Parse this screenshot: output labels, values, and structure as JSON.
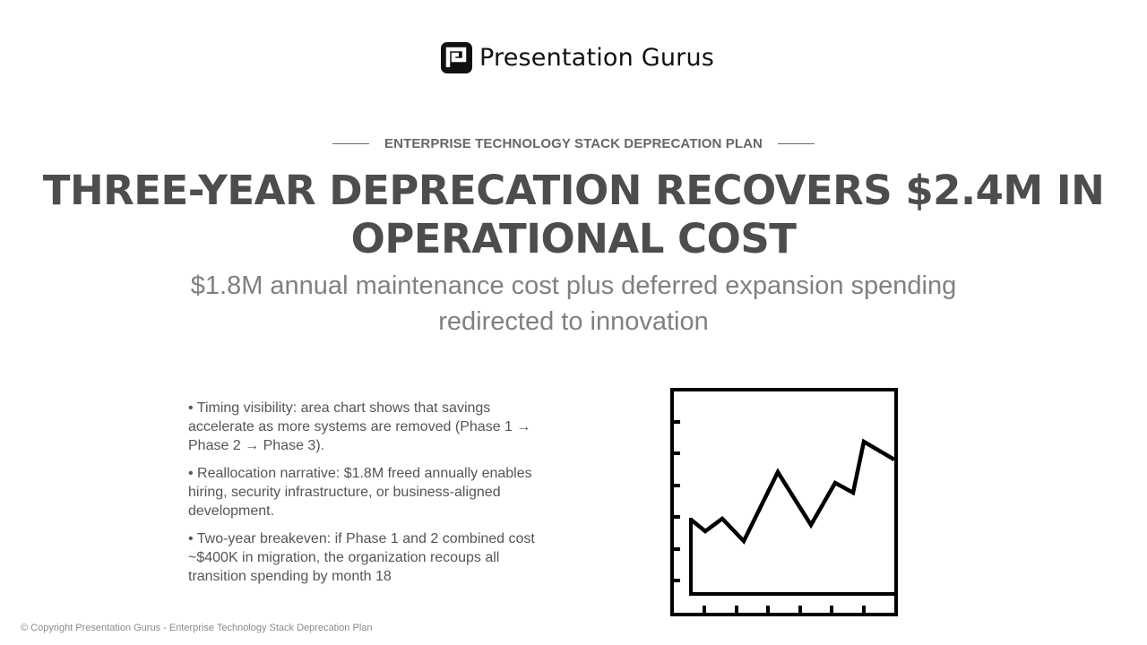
{
  "brand": {
    "name": "Presentation Gurus",
    "logo_icon": "presentation-gurus-logo-icon"
  },
  "header": {
    "eyebrow": "ENTERPRISE TECHNOLOGY STACK DEPRECATION PLAN",
    "title": "THREE-YEAR DEPRECATION RECOVERS $2.4M IN OPERATIONAL COST",
    "subtitle": "$1.8M annual maintenance cost plus deferred expansion spending redirected to innovation"
  },
  "bullets": [
    "• Timing visibility: area chart shows that savings accelerate as more systems are removed (Phase 1 → Phase 2 → Phase 3).",
    "• Reallocation narrative: $1.8M freed annually enables hiring, security infrastructure, or business-aligned development.",
    "• Two-year breakeven: if Phase 1 and 2 combined cost ~$400K in migration, the organization recoups all transition spending by month 18"
  ],
  "illustration": {
    "icon": "line-chart-icon",
    "color": "#000000"
  },
  "footer": {
    "copyright": "© Copyright Presentation Gurus - Enterprise Technology Stack Deprecation Plan"
  },
  "colors": {
    "title": "#4d4d4d",
    "subtitle": "#808080",
    "body_text": "#555555",
    "eyebrow": "#666666"
  }
}
